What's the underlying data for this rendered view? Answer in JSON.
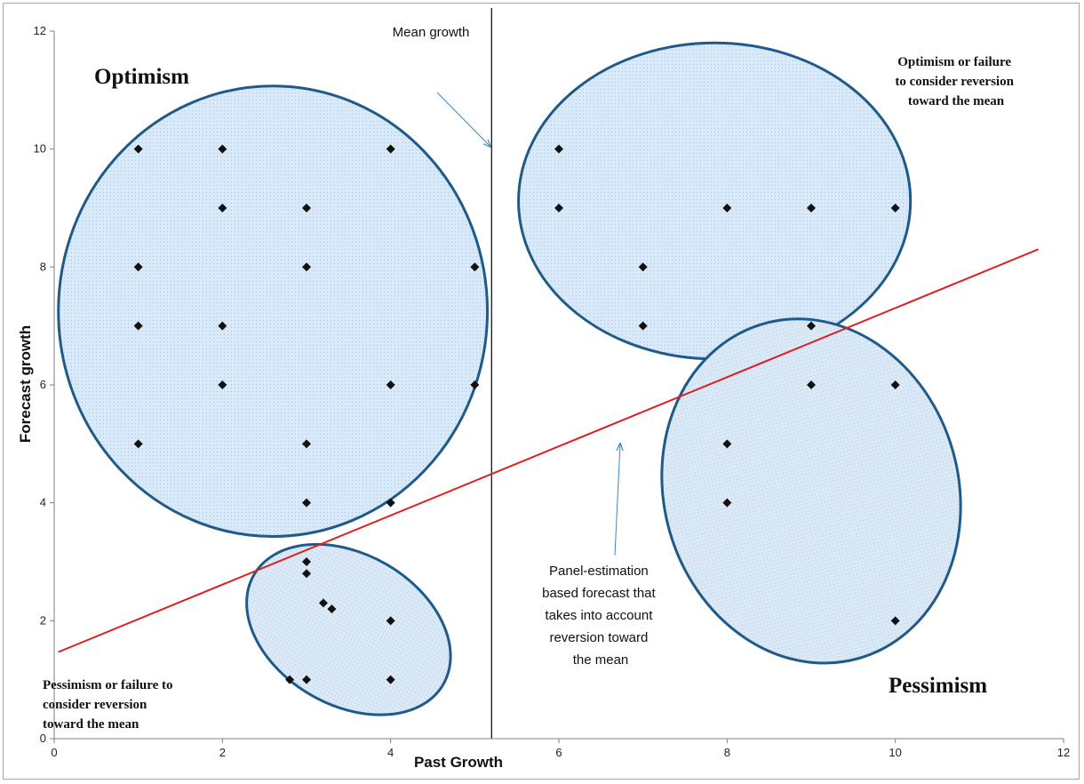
{
  "chart_data": {
    "type": "scatter",
    "xlabel": "Past Growth",
    "ylabel": "Forecast growth",
    "xlim": [
      0,
      12
    ],
    "ylim": [
      0,
      12
    ],
    "x_ticks": [
      0,
      2,
      4,
      6,
      8,
      10,
      12
    ],
    "y_ticks": [
      0,
      2,
      4,
      6,
      8,
      10,
      12
    ],
    "grid": false,
    "points": [
      {
        "x": 1,
        "y": 10
      },
      {
        "x": 2,
        "y": 10
      },
      {
        "x": 4,
        "y": 10
      },
      {
        "x": 2,
        "y": 9
      },
      {
        "x": 3,
        "y": 9
      },
      {
        "x": 1,
        "y": 8
      },
      {
        "x": 3,
        "y": 8
      },
      {
        "x": 5,
        "y": 8
      },
      {
        "x": 1,
        "y": 7
      },
      {
        "x": 2,
        "y": 7
      },
      {
        "x": 2,
        "y": 6
      },
      {
        "x": 4,
        "y": 6
      },
      {
        "x": 5,
        "y": 6
      },
      {
        "x": 1,
        "y": 5
      },
      {
        "x": 3,
        "y": 5
      },
      {
        "x": 3,
        "y": 4
      },
      {
        "x": 4,
        "y": 4
      },
      {
        "x": 3,
        "y": 3
      },
      {
        "x": 3,
        "y": 2.8
      },
      {
        "x": 3.2,
        "y": 2.3
      },
      {
        "x": 3.3,
        "y": 2.2
      },
      {
        "x": 4,
        "y": 2
      },
      {
        "x": 2.8,
        "y": 1
      },
      {
        "x": 3,
        "y": 1
      },
      {
        "x": 4,
        "y": 1
      },
      {
        "x": 6,
        "y": 10
      },
      {
        "x": 6,
        "y": 9
      },
      {
        "x": 8,
        "y": 9
      },
      {
        "x": 9,
        "y": 9
      },
      {
        "x": 10,
        "y": 9
      },
      {
        "x": 7,
        "y": 8
      },
      {
        "x": 7,
        "y": 7
      },
      {
        "x": 9,
        "y": 7
      },
      {
        "x": 9,
        "y": 6
      },
      {
        "x": 10,
        "y": 6
      },
      {
        "x": 8,
        "y": 5
      },
      {
        "x": 8,
        "y": 4
      },
      {
        "x": 10,
        "y": 2
      }
    ],
    "mean_growth_x": 5.2,
    "forecast_line": {
      "x1": 0.05,
      "y1": 1.47,
      "x2": 11.7,
      "y2": 8.3,
      "color": "#e02020"
    },
    "regions": [
      {
        "name": "optimism",
        "cx": 2.6,
        "cy": 7.25,
        "rx": 2.55,
        "ry": 3.82,
        "rotate": 0
      },
      {
        "name": "optimism-or-failure",
        "cx": 7.85,
        "cy": 9.12,
        "rx": 2.33,
        "ry": 2.68,
        "rotate": 0
      },
      {
        "name": "pessimism",
        "cx": 9.0,
        "cy": 4.2,
        "rx": 1.75,
        "ry": 2.95,
        "rotate": -16
      },
      {
        "name": "pessimism-or-failure",
        "cx": 3.5,
        "cy": 1.85,
        "rx": 1.3,
        "ry": 1.28,
        "rotate": 30
      }
    ],
    "colors": {
      "region_fill": "#dbe9f6",
      "region_stroke": "#1f5a88",
      "marker": "#111111",
      "mean_line": "#000000"
    },
    "annotations": {
      "mean_growth": "Mean growth",
      "optimism": "Optimism",
      "optimism_failure": [
        "Optimism or failure",
        "to consider reversion",
        "toward the mean"
      ],
      "pessimism": "Pessimism",
      "pessimism_failure": [
        "Pessimism or failure to",
        "consider reversion",
        "toward the mean"
      ],
      "panel": [
        "Panel-estimation",
        "based forecast that",
        "takes into account",
        "reversion toward",
        "the mean"
      ]
    }
  }
}
